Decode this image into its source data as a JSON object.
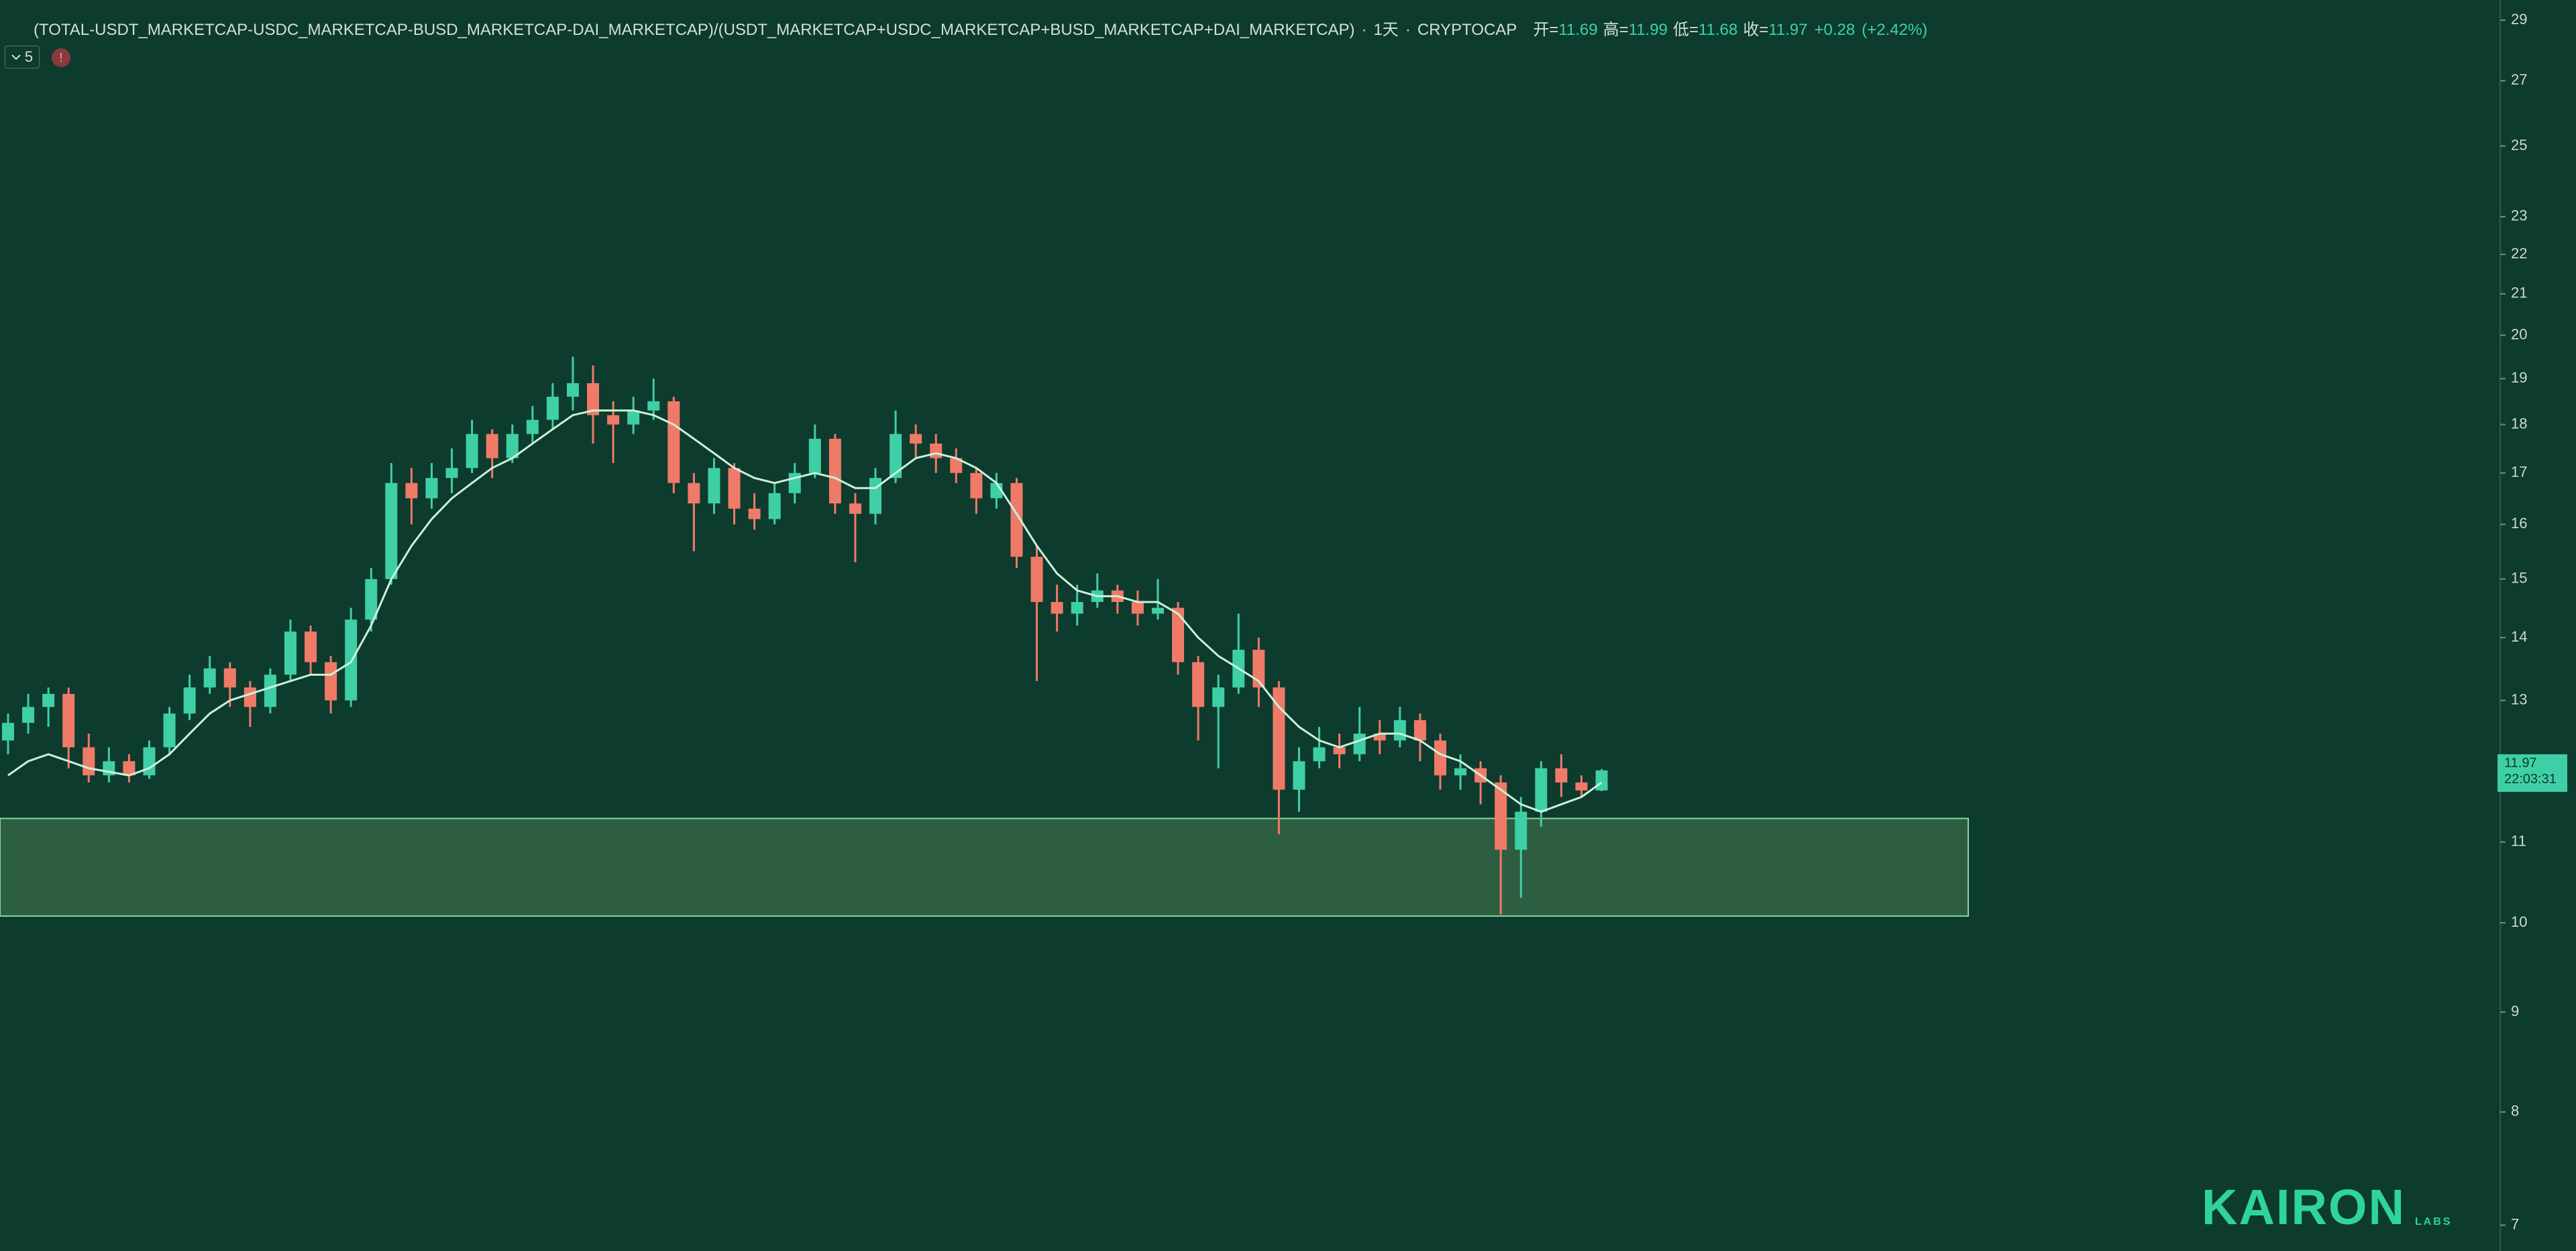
{
  "chart_data": {
    "type": "candlestick",
    "title": "(TOTAL-USDT_MARKETCAP-USDC_MARKETCAP-BUSD_MARKETCAP-DAI_MARKETCAP)/(USDT_MARKETCAP+USDC_MARKETCAP+BUSD_MARKETCAP+DAI_MARKETCAP)",
    "separator": "·",
    "interval": "1天",
    "exchange": "CRYPTOCAP",
    "ohlc_legend": [
      {
        "label": "开=",
        "value": 11.69
      },
      {
        "label": "高=",
        "value": 11.99
      },
      {
        "label": "低=",
        "value": 11.68
      },
      {
        "label": "收=",
        "value": 11.97
      }
    ],
    "change": {
      "value": 0.28,
      "label": "+0.28"
    },
    "change_pct": {
      "value": 2.42,
      "label": "(+2.42%)"
    },
    "indicators_count": 5,
    "log_scale": true,
    "ylim": [
      6.79,
      29.7
    ],
    "yticks": [
      7,
      8,
      9,
      10,
      11,
      13,
      14,
      15,
      16,
      17,
      18,
      19,
      20,
      21,
      22,
      23,
      25,
      27,
      29
    ],
    "zone": {
      "low": 10.08,
      "high": 11.31,
      "color": "#2d5e41",
      "border": "#86d9a0"
    },
    "last_price": 11.97,
    "countdown": "22:03:31",
    "logo": {
      "name": "KAIRON",
      "sub": "LABS",
      "color": "#2fd49a"
    },
    "series": [
      {
        "type": "candlestick",
        "up_color": "#3fcfa6",
        "down_color": "#f07a68",
        "values": [
          [
            12.4,
            12.8,
            12.2,
            12.66
          ],
          [
            12.66,
            13.1,
            12.5,
            12.9
          ],
          [
            12.9,
            13.2,
            12.6,
            13.1
          ],
          [
            13.1,
            13.2,
            12.0,
            12.3
          ],
          [
            12.3,
            12.5,
            11.8,
            11.9
          ],
          [
            11.9,
            12.3,
            11.8,
            12.1
          ],
          [
            12.1,
            12.2,
            11.8,
            11.9
          ],
          [
            11.9,
            12.4,
            11.85,
            12.3
          ],
          [
            12.3,
            12.9,
            12.2,
            12.8
          ],
          [
            12.8,
            13.4,
            12.7,
            13.2
          ],
          [
            13.2,
            13.7,
            13.1,
            13.5
          ],
          [
            13.5,
            13.6,
            12.9,
            13.2
          ],
          [
            13.2,
            13.3,
            12.6,
            12.9
          ],
          [
            12.9,
            13.5,
            12.8,
            13.4
          ],
          [
            13.4,
            14.3,
            13.3,
            14.1
          ],
          [
            14.1,
            14.2,
            13.4,
            13.6
          ],
          [
            13.6,
            13.7,
            12.8,
            13.0
          ],
          [
            13.0,
            14.5,
            12.9,
            14.3
          ],
          [
            14.3,
            15.2,
            14.1,
            15.0
          ],
          [
            15.0,
            17.2,
            14.9,
            16.8
          ],
          [
            16.8,
            17.1,
            16.0,
            16.5
          ],
          [
            16.5,
            17.2,
            16.3,
            16.9
          ],
          [
            16.9,
            17.5,
            16.6,
            17.1
          ],
          [
            17.1,
            18.1,
            17.0,
            17.8
          ],
          [
            17.8,
            17.9,
            16.9,
            17.3
          ],
          [
            17.3,
            18.0,
            17.2,
            17.8
          ],
          [
            17.8,
            18.4,
            17.6,
            18.1
          ],
          [
            18.1,
            18.9,
            17.9,
            18.6
          ],
          [
            18.6,
            19.5,
            18.3,
            18.9
          ],
          [
            18.9,
            19.3,
            17.6,
            18.2
          ],
          [
            18.2,
            18.5,
            17.2,
            18.0
          ],
          [
            18.0,
            18.6,
            17.8,
            18.3
          ],
          [
            18.3,
            19.0,
            18.1,
            18.5
          ],
          [
            18.5,
            18.6,
            16.6,
            16.8
          ],
          [
            16.8,
            17.0,
            15.5,
            16.4
          ],
          [
            16.4,
            17.3,
            16.2,
            17.1
          ],
          [
            17.1,
            17.2,
            16.0,
            16.3
          ],
          [
            16.3,
            16.6,
            15.9,
            16.1
          ],
          [
            16.1,
            16.8,
            16.0,
            16.6
          ],
          [
            16.6,
            17.2,
            16.4,
            17.0
          ],
          [
            17.0,
            18.0,
            16.9,
            17.7
          ],
          [
            17.7,
            17.8,
            16.2,
            16.4
          ],
          [
            16.4,
            16.6,
            15.3,
            16.2
          ],
          [
            16.2,
            17.1,
            16.0,
            16.9
          ],
          [
            16.9,
            18.3,
            16.8,
            17.8
          ],
          [
            17.8,
            18.0,
            17.3,
            17.6
          ],
          [
            17.6,
            17.8,
            17.0,
            17.3
          ],
          [
            17.3,
            17.5,
            16.8,
            17.0
          ],
          [
            17.0,
            17.1,
            16.2,
            16.5
          ],
          [
            16.5,
            17.0,
            16.3,
            16.8
          ],
          [
            16.8,
            16.9,
            15.2,
            15.4
          ],
          [
            15.4,
            15.6,
            13.3,
            14.6
          ],
          [
            14.6,
            14.9,
            14.1,
            14.4
          ],
          [
            14.4,
            14.9,
            14.2,
            14.6
          ],
          [
            14.6,
            15.1,
            14.5,
            14.8
          ],
          [
            14.8,
            14.9,
            14.4,
            14.6
          ],
          [
            14.6,
            14.8,
            14.2,
            14.4
          ],
          [
            14.4,
            15.0,
            14.3,
            14.5
          ],
          [
            14.5,
            14.6,
            13.4,
            13.6
          ],
          [
            13.6,
            13.7,
            12.4,
            12.9
          ],
          [
            12.9,
            13.4,
            12.0,
            13.2
          ],
          [
            13.2,
            14.4,
            13.1,
            13.8
          ],
          [
            13.8,
            14.0,
            12.9,
            13.2
          ],
          [
            13.2,
            13.3,
            11.1,
            11.7
          ],
          [
            11.7,
            12.3,
            11.4,
            12.1
          ],
          [
            12.1,
            12.6,
            12.0,
            12.3
          ],
          [
            12.3,
            12.5,
            12.0,
            12.2
          ],
          [
            12.2,
            12.9,
            12.1,
            12.5
          ],
          [
            12.5,
            12.7,
            12.2,
            12.4
          ],
          [
            12.4,
            12.9,
            12.3,
            12.7
          ],
          [
            12.7,
            12.8,
            12.1,
            12.4
          ],
          [
            12.4,
            12.5,
            11.7,
            11.9
          ],
          [
            11.9,
            12.2,
            11.7,
            12.0
          ],
          [
            12.0,
            12.1,
            11.5,
            11.8
          ],
          [
            11.8,
            11.9,
            10.1,
            10.9
          ],
          [
            10.9,
            11.6,
            10.3,
            11.4
          ],
          [
            11.4,
            12.1,
            11.2,
            12.0
          ],
          [
            12.0,
            12.2,
            11.6,
            11.8
          ],
          [
            11.8,
            11.9,
            11.6,
            11.69
          ],
          [
            11.69,
            11.99,
            11.68,
            11.97
          ]
        ]
      },
      {
        "type": "line",
        "color": "#c9f2da",
        "values": [
          11.9,
          12.1,
          12.2,
          12.1,
          12.0,
          11.95,
          11.9,
          12.0,
          12.2,
          12.5,
          12.8,
          13.0,
          13.1,
          13.2,
          13.3,
          13.4,
          13.4,
          13.6,
          14.2,
          15.0,
          15.6,
          16.1,
          16.5,
          16.8,
          17.1,
          17.3,
          17.6,
          17.9,
          18.2,
          18.3,
          18.3,
          18.3,
          18.2,
          18.0,
          17.7,
          17.4,
          17.1,
          16.9,
          16.8,
          16.9,
          17.0,
          16.9,
          16.7,
          16.7,
          17.0,
          17.3,
          17.4,
          17.3,
          17.1,
          16.8,
          16.2,
          15.6,
          15.1,
          14.8,
          14.7,
          14.7,
          14.6,
          14.6,
          14.4,
          14.0,
          13.7,
          13.5,
          13.3,
          12.9,
          12.6,
          12.4,
          12.3,
          12.4,
          12.5,
          12.5,
          12.4,
          12.2,
          12.1,
          11.9,
          11.7,
          11.5,
          11.4,
          11.5,
          11.6,
          11.8
        ]
      }
    ]
  }
}
